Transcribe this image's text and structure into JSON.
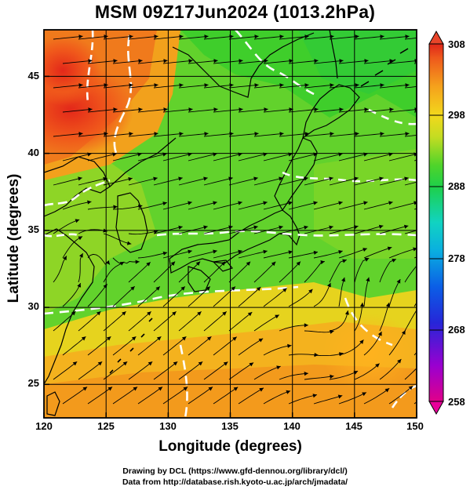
{
  "title": "MSM 09Z17Jun2024 (1013.2hPa)",
  "map": {
    "xlabel": "Longitude (degrees)",
    "ylabel": "Latitude  (degrees)",
    "lon_ticks": [
      "120",
      "125",
      "130",
      "135",
      "140",
      "145",
      "150"
    ],
    "lat_ticks": [
      "25",
      "30",
      "35",
      "40",
      "45"
    ],
    "lon_range": [
      120,
      150
    ],
    "lat_range": [
      22.4,
      47.6
    ],
    "field": "temperature (K) with wind streamlines"
  },
  "colorbar": {
    "labels": [
      "308",
      "298",
      "288",
      "278",
      "268",
      "258"
    ],
    "range": [
      258,
      308
    ],
    "colors": [
      "#d9006a",
      "#8a00c8",
      "#2a2ad6",
      "#0a7de0",
      "#13c7d8",
      "#13d69a",
      "#23cf2e",
      "#8ed826",
      "#e9e11c",
      "#f4a51c",
      "#f06a1c",
      "#e02a18"
    ]
  },
  "credits": {
    "line1": "Drawing by DCL (https://www.gfd-dennou.org/library/dcl/)",
    "line2": "Data from http://database.rish.kyoto-u.ac.jp/arch/jmadata/"
  }
}
